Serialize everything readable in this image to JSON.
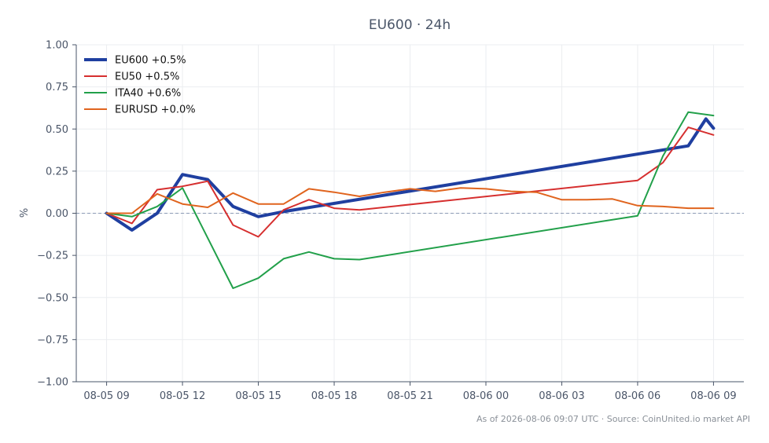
{
  "chart_data": {
    "type": "line",
    "title": "EU600 · 24h",
    "xlabel": "",
    "ylabel": "%",
    "x_hours": [
      0,
      1,
      2,
      3,
      4,
      5,
      6,
      7,
      8,
      9,
      10,
      11,
      12,
      13,
      14,
      15,
      16,
      17,
      18,
      19,
      20,
      21,
      22,
      23,
      24
    ],
    "x_ticks": [
      {
        "hour": 0,
        "label": "08-05 09"
      },
      {
        "hour": 3,
        "label": "08-05 12"
      },
      {
        "hour": 6,
        "label": "08-05 15"
      },
      {
        "hour": 9,
        "label": "08-05 18"
      },
      {
        "hour": 12,
        "label": "08-05 21"
      },
      {
        "hour": 15,
        "label": "08-06 00"
      },
      {
        "hour": 18,
        "label": "08-06 03"
      },
      {
        "hour": 21,
        "label": "08-06 06"
      },
      {
        "hour": 24,
        "label": "08-06 09"
      }
    ],
    "y_ticks": [
      1.0,
      0.75,
      0.5,
      0.25,
      0.0,
      -0.25,
      -0.5,
      -0.75,
      -1.0
    ],
    "y_tick_labels": [
      "1.00",
      "0.75",
      "0.50",
      "0.25",
      "0.00",
      "−0.25",
      "−0.50",
      "−0.75",
      "−1.00"
    ],
    "xlim": [
      -1.2,
      25.2
    ],
    "ylim": [
      -1.0,
      1.0
    ],
    "grid": true,
    "zero_line": true,
    "legend_position": "top-left",
    "series": [
      {
        "name": "EU600 +0.5%",
        "color": "#1f3fa0",
        "width": 4,
        "points": [
          [
            0,
            0.0
          ],
          [
            1,
            -0.1
          ],
          [
            2,
            0.0
          ],
          [
            3,
            0.23
          ],
          [
            4,
            0.2
          ],
          [
            5,
            0.04
          ],
          [
            6,
            -0.02
          ],
          [
            7,
            0.01
          ],
          [
            23,
            0.4
          ],
          [
            23.7,
            0.56
          ],
          [
            24,
            0.505
          ]
        ]
      },
      {
        "name": "EU50 +0.5%",
        "color": "#d62f2f",
        "width": 2,
        "points": [
          [
            0,
            0.0
          ],
          [
            1,
            -0.06
          ],
          [
            2,
            0.14
          ],
          [
            3,
            0.16
          ],
          [
            4,
            0.19
          ],
          [
            5,
            -0.07
          ],
          [
            6,
            -0.14
          ],
          [
            7,
            0.02
          ],
          [
            8,
            0.08
          ],
          [
            9,
            0.03
          ],
          [
            10,
            0.02
          ],
          [
            21,
            0.195
          ],
          [
            22,
            0.3
          ],
          [
            23,
            0.51
          ],
          [
            24,
            0.465
          ]
        ]
      },
      {
        "name": "ITA40 +0.6%",
        "color": "#22a04a",
        "width": 2,
        "points": [
          [
            0,
            0.0
          ],
          [
            1,
            -0.02
          ],
          [
            2,
            0.04
          ],
          [
            3,
            0.15
          ],
          [
            5,
            -0.445
          ],
          [
            6,
            -0.385
          ],
          [
            7,
            -0.27
          ],
          [
            8,
            -0.23
          ],
          [
            9,
            -0.27
          ],
          [
            10,
            -0.275
          ],
          [
            21,
            -0.015
          ],
          [
            22,
            0.34
          ],
          [
            23,
            0.6
          ],
          [
            24,
            0.58
          ]
        ]
      },
      {
        "name": "EURUSD +0.0%",
        "color": "#e0641e",
        "width": 2,
        "points": [
          [
            0,
            0.0
          ],
          [
            1,
            0.0
          ],
          [
            2,
            0.115
          ],
          [
            3,
            0.055
          ],
          [
            4,
            0.035
          ],
          [
            5,
            0.12
          ],
          [
            6,
            0.055
          ],
          [
            7,
            0.055
          ],
          [
            8,
            0.145
          ],
          [
            9,
            0.125
          ],
          [
            10,
            0.1
          ],
          [
            11,
            0.125
          ],
          [
            12,
            0.145
          ],
          [
            13,
            0.13
          ],
          [
            14,
            0.15
          ],
          [
            15,
            0.145
          ],
          [
            16,
            0.13
          ],
          [
            17,
            0.125
          ],
          [
            18,
            0.08
          ],
          [
            19,
            0.08
          ],
          [
            20,
            0.085
          ],
          [
            21,
            0.045
          ],
          [
            22,
            0.04
          ],
          [
            23,
            0.03
          ],
          [
            24,
            0.03
          ]
        ]
      }
    ]
  },
  "footer": {
    "note": "As of 2026-08-06 09:07 UTC · Source: CoinUnited.io market API"
  }
}
